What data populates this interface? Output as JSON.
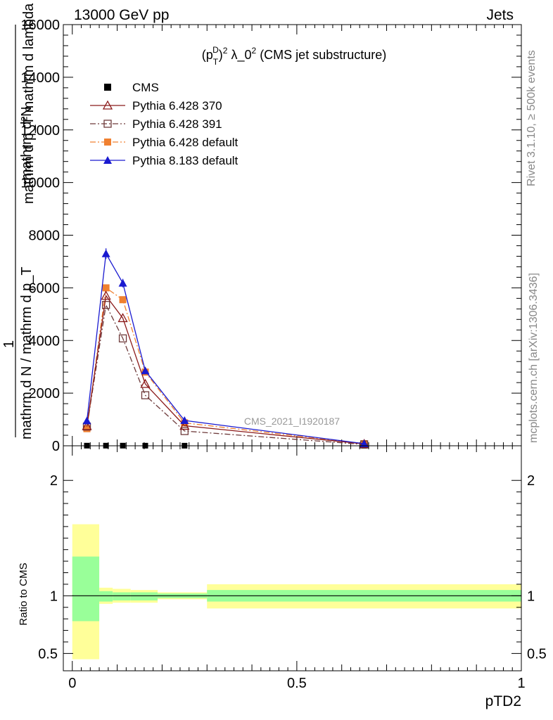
{
  "header": {
    "energy_label": "13000 GeV pp",
    "category_label": "Jets",
    "plot_title": "(p_T^D)^2 λ_0^2 (CMS jet substructure)",
    "title_pre": "(p",
    "title_sub1": "T",
    "title_sup1": "D",
    "title_mid": ")",
    "title_sup2": "2",
    "title_mid2": " λ_0",
    "title_sup3": "2",
    "title_post": " (CMS jet substructure)"
  },
  "side_labels": {
    "rivet": "Rivet 3.1.10, ≥ 500k events",
    "mcplots": "mcplots.cern.ch [arXiv:1306.3436]"
  },
  "watermark": "CMS_2021_I1920187",
  "y_axis_main": {
    "numerator": "mathrm d²N",
    "denominator_line": "mathrm d p_T mathrm d lambda",
    "prefix_one": "1",
    "prefix_den": "mathrm d N / mathrm d p_T"
  },
  "y_axis_ratio_label": "Ratio to CMS",
  "x_axis_label": "pTD2",
  "legend": [
    {
      "label": "CMS",
      "color": "#000000",
      "marker": "filled-square",
      "line": "none"
    },
    {
      "label": "Pythia 6.428 370",
      "color": "#8b1a1a",
      "marker": "open-triangle",
      "line": "solid"
    },
    {
      "label": "Pythia 6.428 391",
      "color": "#6e3b3b",
      "marker": "open-square",
      "line": "dashdot"
    },
    {
      "label": "Pythia 6.428 default",
      "color": "#f08030",
      "marker": "filled-square",
      "line": "dashdot"
    },
    {
      "label": "Pythia 8.183 default",
      "color": "#1a1ad0",
      "marker": "filled-triangle",
      "line": "solid"
    }
  ],
  "chart_data": [
    {
      "type": "line",
      "panel": "main",
      "x": [
        0.0325,
        0.075,
        0.1125,
        0.1625,
        0.25,
        0.65
      ],
      "xlim": [
        -0.02,
        1.0
      ],
      "ylim": [
        0,
        16000
      ],
      "y_ticks": [
        0,
        2000,
        4000,
        6000,
        8000,
        10000,
        12000,
        14000,
        16000
      ],
      "y_tick_labels": [
        "0",
        "2000",
        "4000",
        "6000",
        "8000",
        "10000",
        "12000",
        "14000",
        "16000"
      ],
      "series": [
        {
          "name": "CMS",
          "values": [
            5,
            5,
            5,
            4,
            3,
            0.5
          ]
        },
        {
          "name": "Pythia 6.428 370",
          "values": [
            750,
            5700,
            4850,
            2350,
            760,
            70
          ]
        },
        {
          "name": "Pythia 6.428 391",
          "values": [
            730,
            5350,
            4080,
            1920,
            560,
            50
          ]
        },
        {
          "name": "Pythia 6.428 default",
          "values": [
            650,
            6000,
            5550,
            2800,
            870,
            80
          ]
        },
        {
          "name": "Pythia 8.183 default",
          "values": [
            950,
            7300,
            6180,
            2850,
            960,
            80
          ]
        }
      ],
      "error_bars": {
        "Pythia 8.183 default": [
          60,
          200,
          160,
          80,
          40,
          10
        ]
      }
    },
    {
      "type": "area",
      "panel": "ratio",
      "xlim": [
        -0.02,
        1.0
      ],
      "ylim": [
        0.35,
        2.3
      ],
      "y_ticks": [
        0.5,
        1,
        2
      ],
      "y_tick_labels": [
        "0.5",
        "1",
        "2"
      ],
      "x_ticks": [
        0,
        0.5,
        1
      ],
      "x_tick_labels": [
        "0",
        "0.5",
        "1"
      ],
      "bins": [
        {
          "lo": 0.0,
          "hi": 0.06,
          "stat_lo": 0.78,
          "stat_hi": 1.34,
          "tot_lo": 0.45,
          "tot_hi": 1.62
        },
        {
          "lo": 0.06,
          "hi": 0.09,
          "stat_lo": 0.95,
          "stat_hi": 1.04,
          "tot_lo": 0.93,
          "tot_hi": 1.07
        },
        {
          "lo": 0.09,
          "hi": 0.13,
          "stat_lo": 0.96,
          "stat_hi": 1.03,
          "tot_lo": 0.94,
          "tot_hi": 1.06
        },
        {
          "lo": 0.13,
          "hi": 0.19,
          "stat_lo": 0.96,
          "stat_hi": 1.03,
          "tot_lo": 0.94,
          "tot_hi": 1.05
        },
        {
          "lo": 0.19,
          "hi": 0.3,
          "stat_lo": 0.98,
          "stat_hi": 1.02,
          "tot_lo": 0.97,
          "tot_hi": 1.03
        },
        {
          "lo": 0.3,
          "hi": 1.0,
          "stat_lo": 0.95,
          "stat_hi": 1.05,
          "tot_lo": 0.89,
          "tot_hi": 1.1
        }
      ],
      "stat_color": "#99ff99",
      "total_color": "#ffff99",
      "reference_line": 1
    }
  ]
}
